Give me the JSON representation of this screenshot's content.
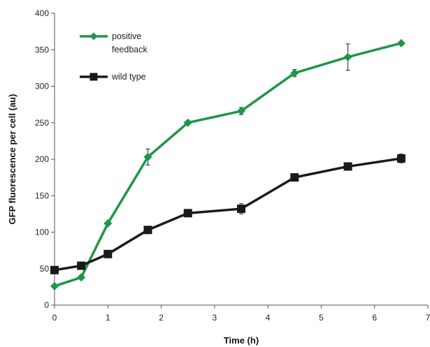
{
  "chart_data": {
    "type": "line",
    "xlabel": "Time (h)",
    "ylabel": "GFP fluorescence per cell (au)",
    "xlim": [
      0,
      7
    ],
    "ylim": [
      0,
      400
    ],
    "xticks": [
      "0",
      "1",
      "2",
      "3",
      "4",
      "5",
      "6",
      "7"
    ],
    "yticks": [
      "0",
      "50",
      "100",
      "150",
      "200",
      "250",
      "300",
      "350",
      "400"
    ],
    "grid": false,
    "legend_position": "top-left",
    "series": [
      {
        "name_lines": [
          "positive",
          "feedback"
        ],
        "color": "#1e9648",
        "marker": "diamond",
        "x": [
          0,
          0.5,
          1,
          1.75,
          2.5,
          3.5,
          4.5,
          5.5,
          6.5
        ],
        "y": [
          26,
          38,
          112,
          203,
          250,
          266,
          318,
          340,
          359
        ],
        "err": [
          0,
          0,
          0,
          11,
          0,
          5,
          5,
          18,
          0
        ]
      },
      {
        "name_lines": [
          "wild type"
        ],
        "color": "#1a1a1a",
        "marker": "square",
        "x": [
          0,
          0.5,
          1,
          1.75,
          2.5,
          3.5,
          4.5,
          5.5,
          6.5
        ],
        "y": [
          48,
          54,
          70,
          103,
          126,
          132,
          175,
          190,
          201
        ],
        "err": [
          0,
          0,
          0,
          0,
          0,
          7,
          0,
          0,
          6
        ]
      }
    ]
  }
}
